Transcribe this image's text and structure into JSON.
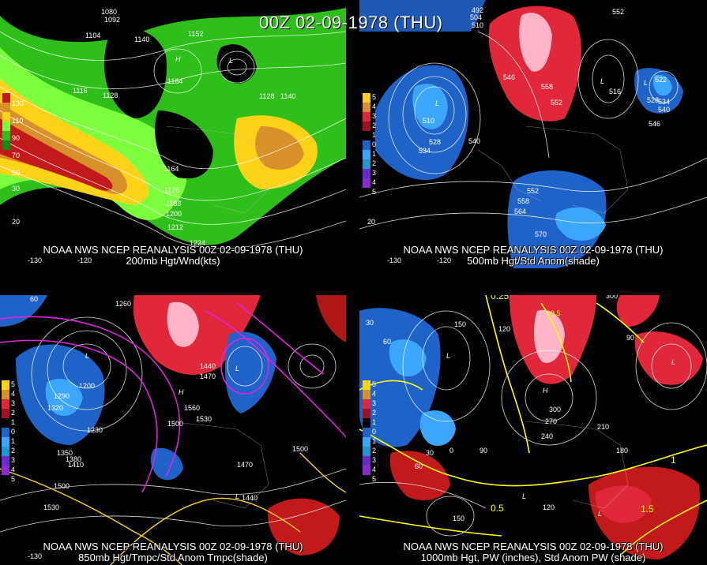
{
  "title": "00Z 02-09-1978 (THU)",
  "panels": [
    {
      "caption_line1": "NOAA NWS NCEP REANALYSIS 00Z 02-09-1978 (THU)",
      "caption_line2": "200mb Hgt/Wnd(kts)",
      "colorbar": [
        "130",
        "110",
        "90",
        "70",
        "50",
        "30"
      ],
      "labels": [
        "1080",
        "1092",
        "1104",
        "1140",
        "1152",
        "1116",
        "1128",
        "1164",
        "1176",
        "1188",
        "1200",
        "1212",
        "1224",
        "1128",
        "1140",
        "1164",
        "H",
        "L",
        "20",
        "-130",
        "-120"
      ]
    },
    {
      "caption_line1": "NOAA NWS NCEP REANALYSIS 00Z 02-09-1978 (THU)",
      "caption_line2": "500mb Hgt/Std Anom(shade)",
      "colorbar": [
        "5",
        "4",
        "3",
        "2",
        "1",
        "0",
        "1",
        "2",
        "3",
        "4",
        "5"
      ],
      "labels": [
        "492",
        "504",
        "510",
        "552",
        "546",
        "558",
        "552",
        "516",
        "522",
        "528",
        "534",
        "540",
        "546",
        "510",
        "528",
        "534",
        "540",
        "552",
        "558",
        "564",
        "570",
        "L",
        "L",
        "L",
        "20",
        "-130",
        "-120"
      ]
    },
    {
      "caption_line1": "NOAA NWS NCEP REANALYSIS 00Z 02-09-1978 (THU)",
      "caption_line2": "850mb Hgt/Tmpc/Std Anom Tmpc(shade)",
      "colorbar": [
        "5",
        "4",
        "3",
        "2",
        "1",
        "0",
        "1",
        "2",
        "3",
        "4",
        "5"
      ],
      "labels": [
        "1260",
        "1320",
        "1440",
        "1470",
        "1500",
        "1530",
        "1560",
        "1290",
        "1350",
        "1380",
        "1410",
        "1230",
        "1200",
        "1500",
        "1530",
        "1470",
        "1440",
        "1500",
        "H",
        "L",
        "L",
        "L",
        "60",
        "-130"
      ]
    },
    {
      "caption_line1": "NOAA NWS NCEP REANALYSIS 00Z 02-09-1978 (THU)",
      "caption_line2": "1000mb Hgt, PW (inches), Std Anom PW (shade)",
      "colorbar": [
        "5",
        "4",
        "3",
        "2",
        "1",
        "0",
        "1",
        "2",
        "3",
        "4",
        "5"
      ],
      "labels": [
        "0.25",
        "300",
        "150",
        "0.5",
        "120",
        "90",
        "60",
        "30",
        "0",
        "300",
        "270",
        "240",
        "210",
        "180",
        "120",
        "90",
        "60",
        "30",
        "0.5",
        "1",
        "1.5",
        "150",
        "H",
        "L",
        "L",
        "L",
        "L"
      ]
    }
  ],
  "colors": {
    "wind_green_light": "#7cff3c",
    "wind_green": "#2fbf1a",
    "wind_green_dark": "#138a13",
    "wind_yellow": "#ffd21a",
    "wind_orange": "#d7902a",
    "wind_red": "#c21a1a",
    "anom_pos": "#e0283a",
    "anom_pos_light": "#ffb4c8",
    "anom_neg": "#1f62c8",
    "anom_neg_light": "#3ca6ff",
    "temp_line": "#e024e0",
    "pw_line": "#ffff00"
  }
}
